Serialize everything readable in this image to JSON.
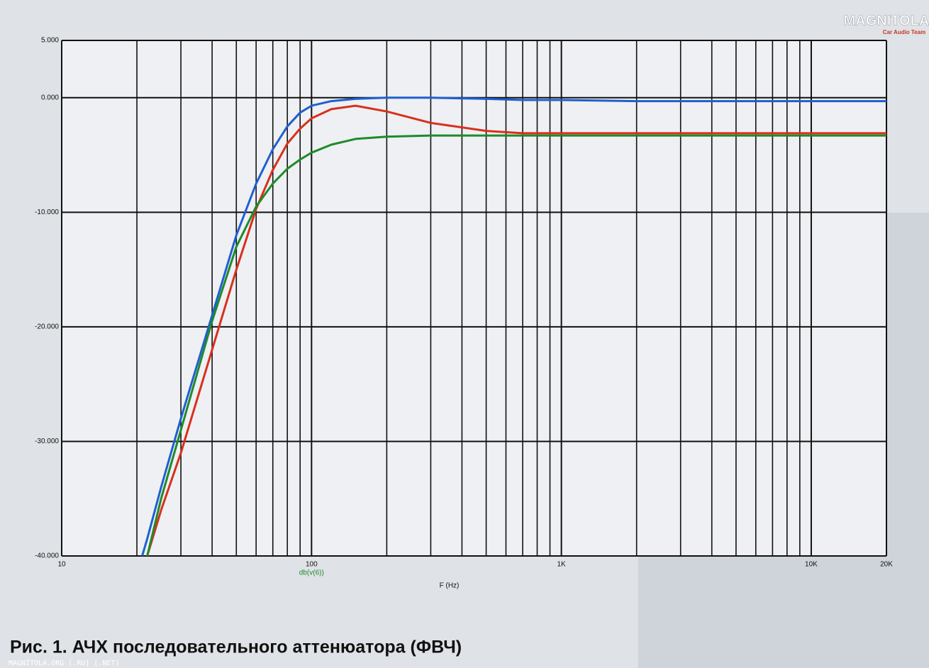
{
  "chart_data": {
    "type": "line",
    "x": [
      21,
      22,
      25,
      30,
      40,
      50,
      60,
      70,
      80,
      90,
      100,
      120,
      150,
      200,
      300,
      500,
      700,
      1000,
      2000,
      5000,
      10000,
      20000
    ],
    "series": [
      {
        "color": "#1f5fd0",
        "values": [
          -40,
          -38.5,
          -34,
          -28,
          -19,
          -12,
          -7.5,
          -4.5,
          -2.5,
          -1.3,
          -0.7,
          -0.3,
          -0.1,
          0,
          0,
          -0.1,
          -0.2,
          -0.2,
          -0.3,
          -0.3,
          -0.3,
          -0.3
        ]
      },
      {
        "color": "#d8301c",
        "values": [
          null,
          -40,
          -36,
          -31,
          -22,
          -15,
          -9.7,
          -6.3,
          -4,
          -2.7,
          -1.8,
          -1,
          -0.7,
          -1.2,
          -2.2,
          -2.9,
          -3.1,
          -3.1,
          -3.1,
          -3.1,
          -3.1,
          -3.1
        ]
      },
      {
        "name": "db(v(6))",
        "color": "#1f8a2a",
        "values": [
          null,
          -40,
          -35,
          -29,
          -19.5,
          -13,
          -9.5,
          -7.5,
          -6.2,
          -5.4,
          -4.8,
          -4.1,
          -3.6,
          -3.4,
          -3.3,
          -3.3,
          -3.3,
          -3.3,
          -3.3,
          -3.3,
          -3.3,
          -3.3
        ]
      }
    ],
    "xlabel": "F (Hz)",
    "xscale": "log",
    "xlim": [
      10,
      20000
    ],
    "xticks": [
      10,
      100,
      {
        "value": 1000,
        "label": "1K"
      },
      {
        "value": 10000,
        "label": "10K"
      },
      {
        "value": 20000,
        "label": "20K"
      }
    ],
    "xgrid_minor": [
      20,
      30,
      40,
      50,
      60,
      70,
      80,
      90,
      200,
      300,
      400,
      500,
      600,
      700,
      800,
      900,
      2000,
      3000,
      4000,
      5000,
      6000,
      7000,
      8000,
      9000
    ],
    "ylim": [
      -40,
      5
    ],
    "yticks": [
      {
        "value": 5,
        "label": "5.000"
      },
      {
        "value": 0,
        "label": "0.000"
      },
      {
        "value": -10,
        "label": "-10.000"
      },
      {
        "value": -20,
        "label": "-20.000"
      },
      {
        "value": -30,
        "label": "-30.000"
      },
      {
        "value": -40,
        "label": "-40.000"
      }
    ],
    "grid": true,
    "caption": "Рис. 1. АЧХ последовательного аттенюатора (ФВЧ)"
  },
  "logo": {
    "title": "MAGNITOLA",
    "subtitle": "Car Audio Team"
  },
  "watermark": "MAGNITOLA.ORG [.RU] [.NET]"
}
